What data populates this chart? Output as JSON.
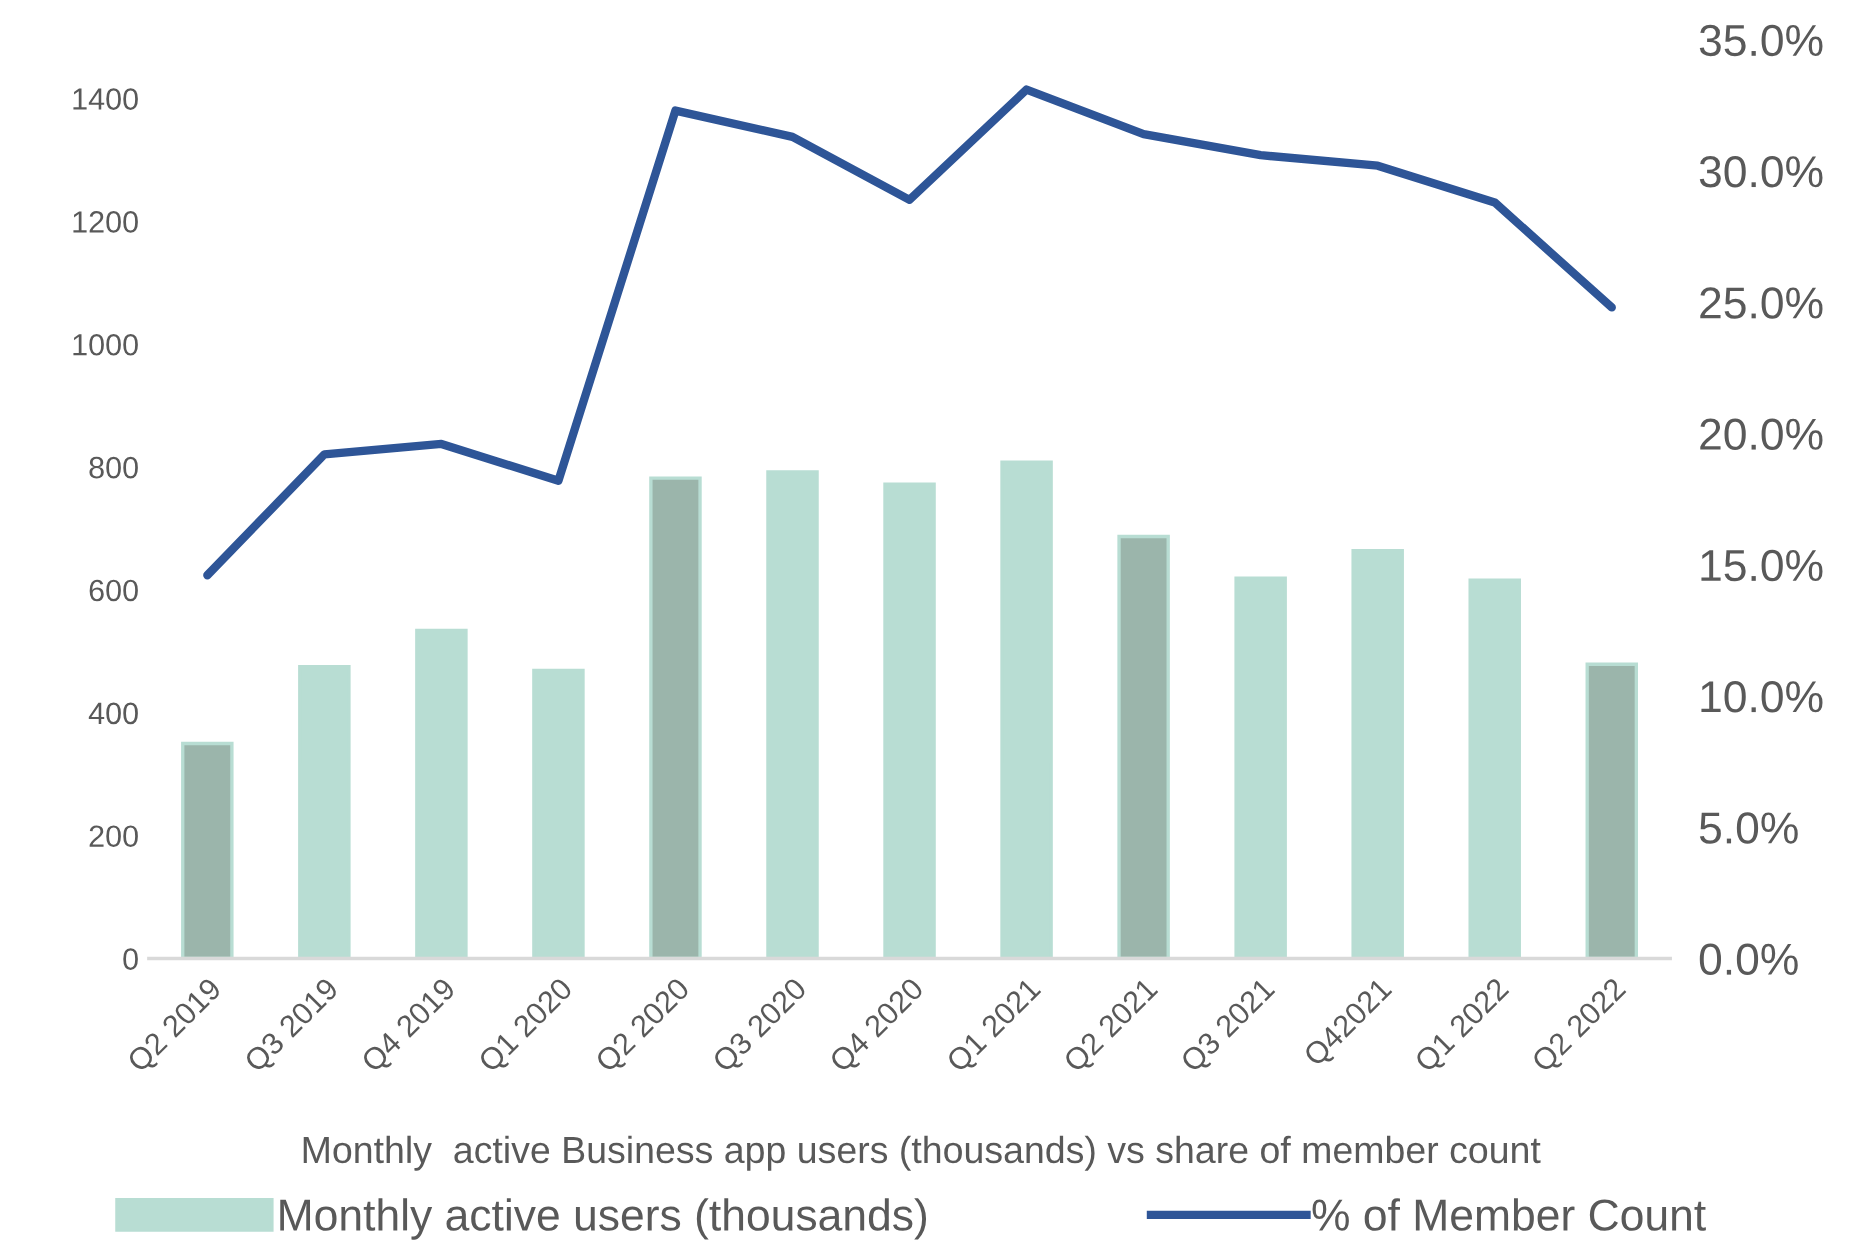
{
  "chart_data": {
    "type": "bar",
    "title": "Monthly  active Business app users (thousands) vs share of member count",
    "categories": [
      "Q2 2019",
      "Q3 2019",
      "Q4 2019",
      "Q1 2020",
      "Q2 2020",
      "Q3 2020",
      "Q4 2020",
      "Q1 2021",
      "Q2 2021",
      "Q3 2021",
      "Q42021",
      "Q1 2022",
      "Q2 2022"
    ],
    "series": [
      {
        "name": "Monthly active users (thousands)",
        "color": "#b8ddd3",
        "colors": [
          "#9bb5ab",
          "#b8ddd3",
          "#b8ddd3",
          "#b8ddd3",
          "#9bb5ab",
          "#b8ddd3",
          "#b8ddd3",
          "#b8ddd3",
          "#9bb5ab",
          "#b8ddd3",
          "#b8ddd3",
          "#b8ddd3",
          "#9bb5ab"
        ],
        "values": [
          350,
          475,
          534,
          469,
          782,
          792,
          772,
          808,
          687,
          619,
          664,
          616,
          479
        ]
      },
      {
        "name": "% of Member Count",
        "type": "line",
        "axis": "y2",
        "color": "#2e5597",
        "values": [
          14.6,
          19.2,
          19.6,
          18.2,
          32.3,
          31.3,
          28.9,
          33.1,
          31.4,
          30.6,
          30.2,
          28.8,
          24.8
        ]
      }
    ],
    "ylim": [
      0,
      1400
    ],
    "yticks": [
      0,
      200,
      400,
      600,
      800,
      1000,
      1200,
      1400
    ],
    "y2lim": [
      0,
      35
    ],
    "y2ticks": [
      {
        "value": 0,
        "label": "0.0%"
      },
      {
        "value": 5,
        "label": "5.0%"
      },
      {
        "value": 10,
        "label": "10.0%"
      },
      {
        "value": 15,
        "label": "15.0%"
      },
      {
        "value": 20,
        "label": "20.0%"
      },
      {
        "value": 25,
        "label": "25.0%"
      },
      {
        "value": 30,
        "label": "30.0%"
      },
      {
        "value": 35,
        "label": "35.0%"
      }
    ],
    "grid": false,
    "legend": "bottom",
    "marker": "none",
    "line_style": "solid"
  }
}
